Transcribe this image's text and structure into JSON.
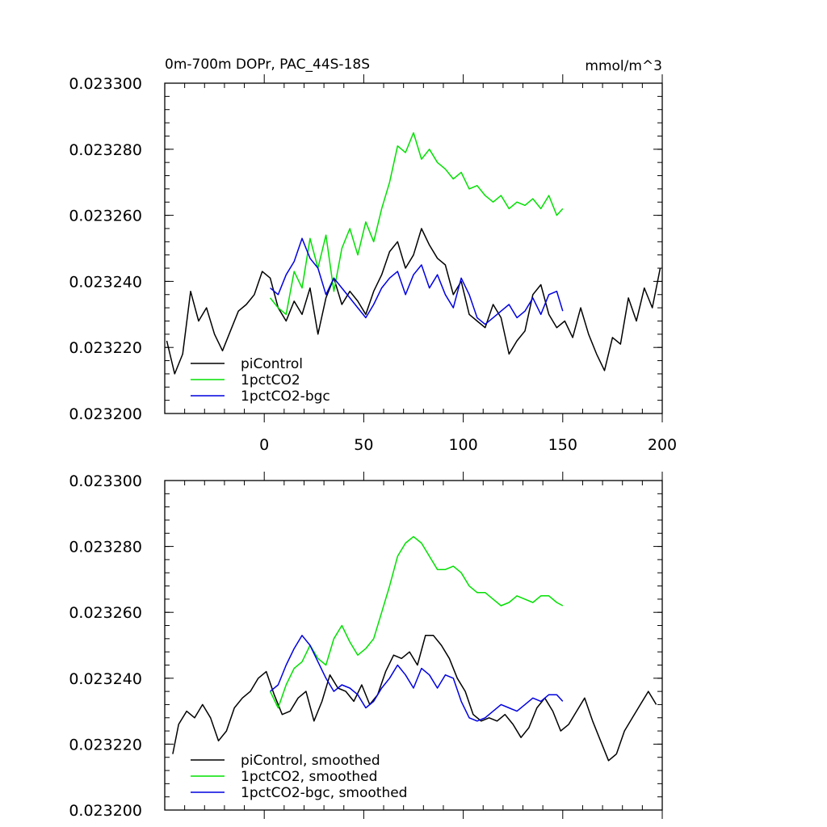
{
  "chart_data": [
    {
      "type": "line",
      "title": "0m-700m DOPr, PAC_44S-18S",
      "units": "mmol/m^3",
      "xlim": [
        -50,
        200
      ],
      "ylim": [
        0.0232,
        0.0233
      ],
      "xticks": [
        0,
        50,
        100,
        150,
        200
      ],
      "xtick_labels": [
        "0",
        "50",
        "100",
        "150",
        "200"
      ],
      "yticks": [
        0.0232,
        0.02322,
        0.02324,
        0.02326,
        0.02328,
        0.0233
      ],
      "ytick_labels": [
        "0.023200",
        "0.023220",
        "0.023240",
        "0.023260",
        "0.023280",
        "0.023300"
      ],
      "legend_location": "bottom-left",
      "series": [
        {
          "name": "piControl",
          "color": "#000000",
          "x": [
            -49,
            -45,
            -41,
            -37,
            -33,
            -29,
            -25,
            -21,
            -17,
            -13,
            -9,
            -5,
            -1,
            3,
            7,
            11,
            15,
            19,
            23,
            27,
            31,
            35,
            39,
            43,
            47,
            51,
            55,
            59,
            63,
            67,
            71,
            75,
            79,
            83,
            87,
            91,
            95,
            99,
            103,
            107,
            111,
            115,
            119,
            123,
            127,
            131,
            135,
            139,
            143,
            147,
            151,
            155,
            159,
            163,
            167,
            171,
            175,
            179,
            183,
            187,
            191,
            195,
            199
          ],
          "y": [
            0.023222,
            0.023212,
            0.023218,
            0.023237,
            0.023228,
            0.023232,
            0.023224,
            0.023219,
            0.023225,
            0.023231,
            0.023233,
            0.023236,
            0.023243,
            0.023241,
            0.023232,
            0.023228,
            0.023234,
            0.02323,
            0.023238,
            0.023224,
            0.023235,
            0.023241,
            0.023233,
            0.023237,
            0.023234,
            0.02323,
            0.023237,
            0.023242,
            0.023249,
            0.023252,
            0.023244,
            0.023248,
            0.023256,
            0.023251,
            0.023247,
            0.023245,
            0.023236,
            0.02324,
            0.02323,
            0.023228,
            0.023226,
            0.023233,
            0.023229,
            0.023218,
            0.023222,
            0.023225,
            0.023236,
            0.023239,
            0.02323,
            0.023226,
            0.023228,
            0.023223,
            0.023232,
            0.023224,
            0.023218,
            0.023213,
            0.023223,
            0.023221,
            0.023235,
            0.023228,
            0.023238,
            0.023232,
            0.023244
          ]
        },
        {
          "name": "1pctCO2",
          "color": "#00e000",
          "x": [
            3,
            7,
            11,
            15,
            19,
            23,
            27,
            31,
            35,
            39,
            43,
            47,
            51,
            55,
            59,
            63,
            67,
            71,
            75,
            79,
            83,
            87,
            91,
            95,
            99,
            103,
            107,
            111,
            115,
            119,
            123,
            127,
            131,
            135,
            139,
            143,
            147,
            150
          ],
          "y": [
            0.023235,
            0.023232,
            0.02323,
            0.023243,
            0.023238,
            0.023253,
            0.023244,
            0.023254,
            0.023237,
            0.02325,
            0.023256,
            0.023248,
            0.023258,
            0.023252,
            0.023262,
            0.02327,
            0.023281,
            0.023279,
            0.023285,
            0.023277,
            0.02328,
            0.023276,
            0.023274,
            0.023271,
            0.023273,
            0.023268,
            0.023269,
            0.023266,
            0.023264,
            0.023266,
            0.023262,
            0.023264,
            0.023263,
            0.023265,
            0.023262,
            0.023266,
            0.02326,
            0.023262
          ]
        },
        {
          "name": "1pctCO2-bgc",
          "color": "#0000e0",
          "x": [
            3,
            7,
            11,
            15,
            19,
            23,
            27,
            31,
            35,
            39,
            43,
            47,
            51,
            55,
            59,
            63,
            67,
            71,
            75,
            79,
            83,
            87,
            91,
            95,
            99,
            103,
            107,
            111,
            115,
            119,
            123,
            127,
            131,
            135,
            139,
            143,
            147,
            150
          ],
          "y": [
            0.023238,
            0.023236,
            0.023242,
            0.023246,
            0.023253,
            0.023247,
            0.023244,
            0.023236,
            0.023241,
            0.023238,
            0.023235,
            0.023232,
            0.023229,
            0.023233,
            0.023238,
            0.023241,
            0.023243,
            0.023236,
            0.023242,
            0.023245,
            0.023238,
            0.023242,
            0.023236,
            0.023232,
            0.023241,
            0.023236,
            0.023229,
            0.023227,
            0.023229,
            0.023231,
            0.023233,
            0.023229,
            0.023231,
            0.023235,
            0.02323,
            0.023236,
            0.023237,
            0.023231
          ]
        }
      ]
    },
    {
      "type": "line",
      "title": "",
      "xlim": [
        -50,
        200
      ],
      "ylim": [
        0.0232,
        0.0233
      ],
      "xticks": [
        0,
        50,
        100,
        150,
        200
      ],
      "yticks": [
        0.0232,
        0.02322,
        0.02324,
        0.02326,
        0.02328,
        0.0233
      ],
      "ytick_labels": [
        "0.023200",
        "0.023220",
        "0.023240",
        "0.023260",
        "0.023280",
        "0.023300"
      ],
      "legend_location": "bottom-left",
      "series": [
        {
          "name": "piControl, smoothed",
          "color": "#000000",
          "x": [
            -46,
            -43,
            -39,
            -35,
            -31,
            -27,
            -23,
            -19,
            -15,
            -11,
            -7,
            -3,
            1,
            5,
            9,
            13,
            17,
            21,
            25,
            29,
            33,
            37,
            41,
            45,
            49,
            53,
            57,
            61,
            65,
            69,
            73,
            77,
            81,
            85,
            89,
            93,
            97,
            101,
            105,
            109,
            113,
            117,
            121,
            125,
            129,
            133,
            137,
            141,
            145,
            149,
            153,
            157,
            161,
            165,
            169,
            173,
            177,
            181,
            185,
            189,
            193,
            197
          ],
          "y": [
            0.023217,
            0.023226,
            0.02323,
            0.023228,
            0.023232,
            0.023228,
            0.023221,
            0.023224,
            0.023231,
            0.023234,
            0.023236,
            0.02324,
            0.023242,
            0.023235,
            0.023229,
            0.02323,
            0.023234,
            0.023236,
            0.023227,
            0.023233,
            0.023241,
            0.023237,
            0.023236,
            0.023233,
            0.023238,
            0.023232,
            0.023235,
            0.023242,
            0.023247,
            0.023246,
            0.023248,
            0.023244,
            0.023253,
            0.023253,
            0.02325,
            0.023246,
            0.02324,
            0.023236,
            0.023229,
            0.023227,
            0.023228,
            0.023227,
            0.023229,
            0.023226,
            0.023222,
            0.023225,
            0.023231,
            0.023234,
            0.02323,
            0.023224,
            0.023226,
            0.02323,
            0.023234,
            0.023227,
            0.023221,
            0.023215,
            0.023217,
            0.023224,
            0.023228,
            0.023232,
            0.023236,
            0.023232
          ]
        },
        {
          "name": "1pctCO2, smoothed",
          "color": "#00e000",
          "x": [
            3,
            7,
            11,
            15,
            19,
            23,
            27,
            31,
            35,
            39,
            43,
            47,
            51,
            55,
            59,
            63,
            67,
            71,
            75,
            79,
            83,
            87,
            91,
            95,
            99,
            103,
            107,
            111,
            115,
            119,
            123,
            127,
            131,
            135,
            139,
            143,
            147,
            150
          ],
          "y": [
            0.023236,
            0.023231,
            0.023238,
            0.023243,
            0.023245,
            0.02325,
            0.023246,
            0.023244,
            0.023252,
            0.023256,
            0.023251,
            0.023247,
            0.023249,
            0.023252,
            0.02326,
            0.023268,
            0.023277,
            0.023281,
            0.023283,
            0.023281,
            0.023277,
            0.023273,
            0.023273,
            0.023274,
            0.023272,
            0.023268,
            0.023266,
            0.023266,
            0.023264,
            0.023262,
            0.023263,
            0.023265,
            0.023264,
            0.023263,
            0.023265,
            0.023265,
            0.023263,
            0.023262
          ]
        },
        {
          "name": "1pctCO2-bgc, smoothed",
          "color": "#0000e0",
          "x": [
            3,
            7,
            11,
            15,
            19,
            23,
            27,
            31,
            35,
            39,
            43,
            47,
            51,
            55,
            59,
            63,
            67,
            71,
            75,
            79,
            83,
            87,
            91,
            95,
            99,
            103,
            107,
            111,
            115,
            119,
            123,
            127,
            131,
            135,
            139,
            143,
            147,
            150
          ],
          "y": [
            0.023236,
            0.023238,
            0.023244,
            0.023249,
            0.023253,
            0.02325,
            0.023245,
            0.02324,
            0.023236,
            0.023238,
            0.023237,
            0.023235,
            0.023231,
            0.023233,
            0.023237,
            0.02324,
            0.023244,
            0.023241,
            0.023237,
            0.023243,
            0.023241,
            0.023237,
            0.023241,
            0.02324,
            0.023233,
            0.023228,
            0.023227,
            0.023228,
            0.02323,
            0.023232,
            0.023231,
            0.02323,
            0.023232,
            0.023234,
            0.023233,
            0.023235,
            0.023235,
            0.023233
          ]
        }
      ]
    }
  ]
}
